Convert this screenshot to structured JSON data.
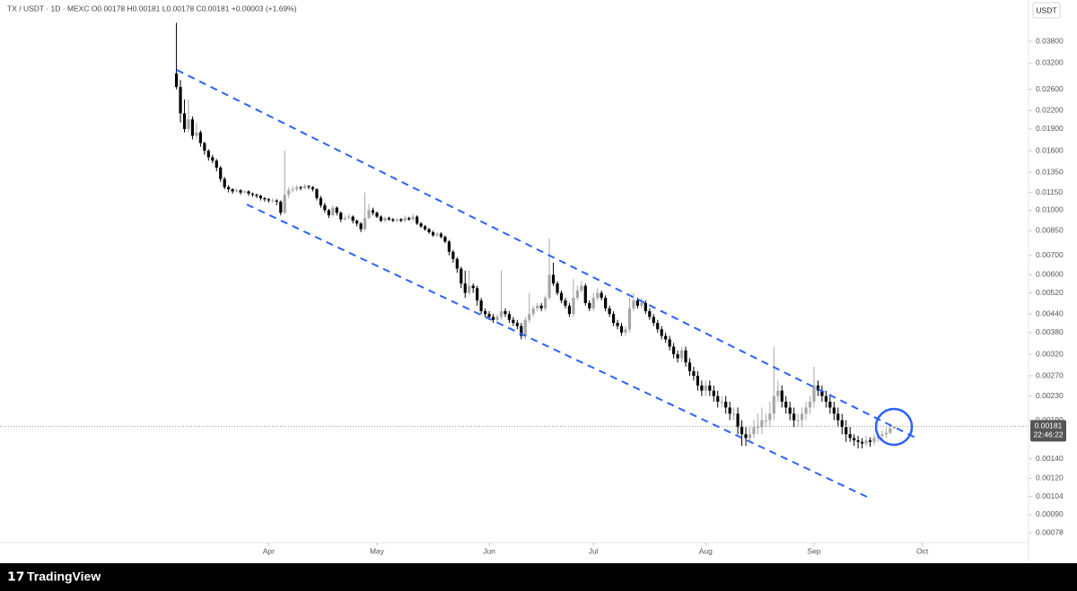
{
  "chart_data": {
    "type": "candlestick",
    "title": "TX / USDT · 1D · MEXC  O0.00178  H0.00181  L0.00178  C0.00181  +0.00003 (+1.69%)",
    "currency": "USDT",
    "last_price_label": "0.00181",
    "countdown": "22:46:22",
    "up_color": "#a6a6a6",
    "down_color": "#000000",
    "log_scale": true,
    "ylim": [
      0.00064,
      0.0527
    ],
    "yticks": [
      {
        "value": 0.038,
        "label": "0.03800"
      },
      {
        "value": 0.032,
        "label": "0.03200"
      },
      {
        "value": 0.026,
        "label": "0.02600"
      },
      {
        "value": 0.022,
        "label": "0.02200"
      },
      {
        "value": 0.019,
        "label": "0.01900"
      },
      {
        "value": 0.016,
        "label": "0.01600"
      },
      {
        "value": 0.0135,
        "label": "0.01350"
      },
      {
        "value": 0.0115,
        "label": "0.01150"
      },
      {
        "value": 0.01,
        "label": "0.01000"
      },
      {
        "value": 0.0085,
        "label": "0.00850"
      },
      {
        "value": 0.007,
        "label": "0.00700"
      },
      {
        "value": 0.006,
        "label": "0.00600"
      },
      {
        "value": 0.0052,
        "label": "0.00520"
      },
      {
        "value": 0.0044,
        "label": "0.00440"
      },
      {
        "value": 0.0038,
        "label": "0.00380"
      },
      {
        "value": 0.0032,
        "label": "0.00320"
      },
      {
        "value": 0.0027,
        "label": "0.00270"
      },
      {
        "value": 0.0023,
        "label": "0.00230"
      },
      {
        "value": 0.0019,
        "label": "0.00190"
      },
      {
        "value": 0.0014,
        "label": "0.00140"
      },
      {
        "value": 0.0012,
        "label": "0.00120"
      },
      {
        "value": 0.00104,
        "label": "0.00104"
      },
      {
        "value": 0.0009,
        "label": "0.00090"
      },
      {
        "value": 0.00078,
        "label": "0.00078"
      }
    ],
    "xlim": [
      -44,
      212.5
    ],
    "xticks": [
      {
        "value": 23,
        "label": "Apr"
      },
      {
        "value": 50,
        "label": "May"
      },
      {
        "value": 78,
        "label": "Jun"
      },
      {
        "value": 104,
        "label": "Jul"
      },
      {
        "value": 132,
        "label": "Aug"
      },
      {
        "value": 159,
        "label": "Sep"
      },
      {
        "value": 186,
        "label": "Oct"
      }
    ],
    "candles": [
      [
        0.0295,
        0.044,
        0.026,
        0.0265
      ],
      [
        0.0265,
        0.028,
        0.02,
        0.0215
      ],
      [
        0.0215,
        0.024,
        0.0185,
        0.019
      ],
      [
        0.019,
        0.024,
        0.0185,
        0.0205
      ],
      [
        0.0205,
        0.021,
        0.0175,
        0.018
      ],
      [
        0.018,
        0.02,
        0.0175,
        0.0185
      ],
      [
        0.0185,
        0.0188,
        0.0165,
        0.017
      ],
      [
        0.017,
        0.0172,
        0.0155,
        0.016
      ],
      [
        0.016,
        0.0162,
        0.0148,
        0.0152
      ],
      [
        0.0152,
        0.0155,
        0.0145,
        0.0148
      ],
      [
        0.0148,
        0.015,
        0.0136,
        0.014
      ],
      [
        0.014,
        0.0142,
        0.0125,
        0.0128
      ],
      [
        0.0128,
        0.013,
        0.0118,
        0.012
      ],
      [
        0.012,
        0.0122,
        0.0115,
        0.0118
      ],
      [
        0.0118,
        0.0119,
        0.0114,
        0.0116
      ],
      [
        0.0116,
        0.0119,
        0.0115,
        0.0117
      ],
      [
        0.0117,
        0.0118,
        0.0113,
        0.0115
      ],
      [
        0.0115,
        0.0117,
        0.0114,
        0.0116
      ],
      [
        0.0116,
        0.0117,
        0.0112,
        0.0114
      ],
      [
        0.0114,
        0.0115,
        0.0111,
        0.0113
      ],
      [
        0.0113,
        0.0114,
        0.011,
        0.0112
      ],
      [
        0.0112,
        0.0113,
        0.0108,
        0.011
      ],
      [
        0.011,
        0.0111,
        0.0107,
        0.0109
      ],
      [
        0.0109,
        0.011,
        0.0106,
        0.0108
      ],
      [
        0.0108,
        0.011,
        0.0106,
        0.0108
      ],
      [
        0.0108,
        0.0109,
        0.0104,
        0.0107
      ],
      [
        0.0107,
        0.0108,
        0.0096,
        0.0098
      ],
      [
        0.0098,
        0.016,
        0.0097,
        0.0113
      ],
      [
        0.0113,
        0.012,
        0.011,
        0.0117
      ],
      [
        0.0117,
        0.0121,
        0.0115,
        0.0118
      ],
      [
        0.0118,
        0.0122,
        0.0116,
        0.012
      ],
      [
        0.012,
        0.0121,
        0.0117,
        0.0119
      ],
      [
        0.0119,
        0.0123,
        0.0118,
        0.0121
      ],
      [
        0.0121,
        0.0122,
        0.0118,
        0.012
      ],
      [
        0.012,
        0.0121,
        0.0116,
        0.0118
      ],
      [
        0.0118,
        0.0119,
        0.0108,
        0.011
      ],
      [
        0.011,
        0.0112,
        0.0102,
        0.0104
      ],
      [
        0.0104,
        0.0106,
        0.0098,
        0.01
      ],
      [
        0.01,
        0.0101,
        0.0094,
        0.0096
      ],
      [
        0.0096,
        0.0104,
        0.0095,
        0.0102
      ],
      [
        0.0102,
        0.0103,
        0.0096,
        0.0098
      ],
      [
        0.0098,
        0.0099,
        0.0091,
        0.0093
      ],
      [
        0.0093,
        0.0096,
        0.0092,
        0.0094
      ],
      [
        0.0094,
        0.0097,
        0.0093,
        0.0095
      ],
      [
        0.0095,
        0.0096,
        0.009,
        0.0092
      ],
      [
        0.0092,
        0.0093,
        0.0088,
        0.009
      ],
      [
        0.009,
        0.0091,
        0.0084,
        0.0086
      ],
      [
        0.0086,
        0.0115,
        0.0085,
        0.0094
      ],
      [
        0.0094,
        0.0105,
        0.0093,
        0.01
      ],
      [
        0.01,
        0.0102,
        0.0096,
        0.0098
      ],
      [
        0.0098,
        0.0099,
        0.0094,
        0.0095
      ],
      [
        0.0095,
        0.0096,
        0.0091,
        0.0092
      ],
      [
        0.0092,
        0.0095,
        0.0091,
        0.0094
      ],
      [
        0.0094,
        0.0095,
        0.0092,
        0.0093
      ],
      [
        0.0093,
        0.0094,
        0.0091,
        0.0092
      ],
      [
        0.0092,
        0.0094,
        0.0091,
        0.0093
      ],
      [
        0.0093,
        0.0094,
        0.0091,
        0.0092
      ],
      [
        0.0092,
        0.0096,
        0.0091,
        0.0094
      ],
      [
        0.0094,
        0.0095,
        0.0092,
        0.0093
      ],
      [
        0.0093,
        0.0097,
        0.0092,
        0.0095
      ],
      [
        0.0095,
        0.0096,
        0.0089,
        0.009
      ],
      [
        0.009,
        0.0091,
        0.0087,
        0.0088
      ],
      [
        0.0088,
        0.0089,
        0.0085,
        0.0086
      ],
      [
        0.0086,
        0.0087,
        0.0083,
        0.0084
      ],
      [
        0.0084,
        0.0085,
        0.0081,
        0.0082
      ],
      [
        0.0082,
        0.0084,
        0.0081,
        0.0083
      ],
      [
        0.0083,
        0.0084,
        0.008,
        0.0081
      ],
      [
        0.0081,
        0.0082,
        0.0077,
        0.0078
      ],
      [
        0.0078,
        0.0079,
        0.007,
        0.0072
      ],
      [
        0.0072,
        0.0073,
        0.0066,
        0.0068
      ],
      [
        0.0068,
        0.0069,
        0.0061,
        0.0063
      ],
      [
        0.0063,
        0.0064,
        0.0054,
        0.0056
      ],
      [
        0.0056,
        0.0062,
        0.005,
        0.0052
      ],
      [
        0.0052,
        0.0062,
        0.0051,
        0.0055
      ],
      [
        0.0055,
        0.0056,
        0.0052,
        0.0054
      ],
      [
        0.0054,
        0.0055,
        0.0047,
        0.0049
      ],
      [
        0.0049,
        0.005,
        0.0044,
        0.0045
      ],
      [
        0.0045,
        0.0046,
        0.0043,
        0.0044
      ],
      [
        0.0044,
        0.0045,
        0.0042,
        0.0043
      ],
      [
        0.0043,
        0.0044,
        0.0041,
        0.0042
      ],
      [
        0.0042,
        0.0044,
        0.0041,
        0.0043
      ],
      [
        0.0043,
        0.0062,
        0.0042,
        0.0045
      ],
      [
        0.0045,
        0.0046,
        0.0043,
        0.0044
      ],
      [
        0.0044,
        0.0045,
        0.0041,
        0.0042
      ],
      [
        0.0042,
        0.0043,
        0.004,
        0.0041
      ],
      [
        0.0041,
        0.0042,
        0.0039,
        0.004
      ],
      [
        0.004,
        0.0041,
        0.0036,
        0.0037
      ],
      [
        0.0037,
        0.0043,
        0.0036,
        0.0042
      ],
      [
        0.0042,
        0.0052,
        0.0041,
        0.0044
      ],
      [
        0.0044,
        0.0047,
        0.0043,
        0.0046
      ],
      [
        0.0046,
        0.0048,
        0.0045,
        0.0047
      ],
      [
        0.0047,
        0.0048,
        0.0045,
        0.0046
      ],
      [
        0.0046,
        0.0051,
        0.0045,
        0.005
      ],
      [
        0.005,
        0.008,
        0.0049,
        0.006
      ],
      [
        0.006,
        0.0066,
        0.0055,
        0.0056
      ],
      [
        0.0056,
        0.0057,
        0.0051,
        0.0052
      ],
      [
        0.0052,
        0.0053,
        0.0048,
        0.0049
      ],
      [
        0.0049,
        0.005,
        0.0046,
        0.0047
      ],
      [
        0.0047,
        0.0048,
        0.0043,
        0.0044
      ],
      [
        0.0044,
        0.0058,
        0.0043,
        0.005
      ],
      [
        0.005,
        0.0055,
        0.0049,
        0.0053
      ],
      [
        0.0053,
        0.0057,
        0.0052,
        0.0055
      ],
      [
        0.0055,
        0.0056,
        0.0047,
        0.0048
      ],
      [
        0.0048,
        0.0049,
        0.0045,
        0.0046
      ],
      [
        0.0046,
        0.0052,
        0.0045,
        0.005
      ],
      [
        0.005,
        0.0054,
        0.0049,
        0.0052
      ],
      [
        0.0052,
        0.0053,
        0.0049,
        0.005
      ],
      [
        0.005,
        0.0051,
        0.0045,
        0.0046
      ],
      [
        0.0046,
        0.0047,
        0.0043,
        0.0044
      ],
      [
        0.0044,
        0.0045,
        0.004,
        0.0041
      ],
      [
        0.0041,
        0.0042,
        0.0039,
        0.004
      ],
      [
        0.004,
        0.0041,
        0.0037,
        0.0038
      ],
      [
        0.0038,
        0.004,
        0.0037,
        0.0039
      ],
      [
        0.0039,
        0.005,
        0.0038,
        0.0046
      ],
      [
        0.0046,
        0.0052,
        0.0045,
        0.0049
      ],
      [
        0.0049,
        0.005,
        0.0046,
        0.0047
      ],
      [
        0.0047,
        0.005,
        0.0046,
        0.0048
      ],
      [
        0.0048,
        0.0049,
        0.0044,
        0.0045
      ],
      [
        0.0045,
        0.0046,
        0.0042,
        0.0043
      ],
      [
        0.0043,
        0.0044,
        0.004,
        0.0041
      ],
      [
        0.0041,
        0.0042,
        0.0038,
        0.0039
      ],
      [
        0.0039,
        0.004,
        0.0036,
        0.0037
      ],
      [
        0.0037,
        0.0038,
        0.0035,
        0.0036
      ],
      [
        0.0036,
        0.0037,
        0.0033,
        0.0034
      ],
      [
        0.0034,
        0.0035,
        0.0031,
        0.0032
      ],
      [
        0.0032,
        0.0033,
        0.003,
        0.0031
      ],
      [
        0.0031,
        0.0034,
        0.003,
        0.0033
      ],
      [
        0.0033,
        0.0034,
        0.0029,
        0.003
      ],
      [
        0.003,
        0.0031,
        0.0027,
        0.0028
      ],
      [
        0.0028,
        0.0029,
        0.0026,
        0.0027
      ],
      [
        0.0027,
        0.0028,
        0.0024,
        0.0025
      ],
      [
        0.0025,
        0.0026,
        0.0023,
        0.0024
      ],
      [
        0.0024,
        0.0026,
        0.0023,
        0.0025
      ],
      [
        0.0025,
        0.0026,
        0.0023,
        0.0024
      ],
      [
        0.0024,
        0.0025,
        0.0022,
        0.0023
      ],
      [
        0.0023,
        0.0024,
        0.0021,
        0.0022
      ],
      [
        0.0022,
        0.0023,
        0.0021,
        0.0022
      ],
      [
        0.0022,
        0.0023,
        0.002,
        0.0021
      ],
      [
        0.0021,
        0.0022,
        0.0019,
        0.002
      ],
      [
        0.002,
        0.0021,
        0.0019,
        0.002
      ],
      [
        0.002,
        0.0021,
        0.0017,
        0.0018
      ],
      [
        0.0018,
        0.0019,
        0.00155,
        0.0017
      ],
      [
        0.0017,
        0.0018,
        0.00155,
        0.00165
      ],
      [
        0.00165,
        0.0018,
        0.0016,
        0.0017
      ],
      [
        0.0017,
        0.0019,
        0.00165,
        0.0018
      ],
      [
        0.0018,
        0.002,
        0.0017,
        0.0018
      ],
      [
        0.0018,
        0.0021,
        0.0017,
        0.0019
      ],
      [
        0.0019,
        0.002,
        0.0018,
        0.0019
      ],
      [
        0.0019,
        0.0022,
        0.0018,
        0.002
      ],
      [
        0.002,
        0.0034,
        0.0019,
        0.0023
      ],
      [
        0.0023,
        0.0026,
        0.0022,
        0.0024
      ],
      [
        0.0024,
        0.0025,
        0.0021,
        0.0022
      ],
      [
        0.0022,
        0.0023,
        0.002,
        0.0021
      ],
      [
        0.0021,
        0.0022,
        0.0019,
        0.002
      ],
      [
        0.002,
        0.0021,
        0.0018,
        0.0019
      ],
      [
        0.0019,
        0.002,
        0.0018,
        0.0019
      ],
      [
        0.0019,
        0.0021,
        0.0018,
        0.002
      ],
      [
        0.002,
        0.0022,
        0.0019,
        0.0021
      ],
      [
        0.0021,
        0.0023,
        0.002,
        0.0022
      ],
      [
        0.0022,
        0.0029,
        0.0021,
        0.0025
      ],
      [
        0.0025,
        0.0026,
        0.0023,
        0.0024
      ],
      [
        0.0024,
        0.0025,
        0.0022,
        0.0023
      ],
      [
        0.0023,
        0.0024,
        0.0021,
        0.0022
      ],
      [
        0.0022,
        0.0023,
        0.002,
        0.0021
      ],
      [
        0.0021,
        0.0022,
        0.0019,
        0.002
      ],
      [
        0.002,
        0.0021,
        0.0018,
        0.0019
      ],
      [
        0.0019,
        0.002,
        0.0017,
        0.0018
      ],
      [
        0.0018,
        0.0019,
        0.0016,
        0.0017
      ],
      [
        0.0017,
        0.0018,
        0.0016,
        0.00165
      ],
      [
        0.00165,
        0.0017,
        0.00155,
        0.00162
      ],
      [
        0.00162,
        0.00168,
        0.00152,
        0.0016
      ],
      [
        0.0016,
        0.00165,
        0.00152,
        0.00158
      ],
      [
        0.00158,
        0.00168,
        0.00155,
        0.00162
      ],
      [
        0.00162,
        0.00166,
        0.00154,
        0.0016
      ],
      [
        0.0016,
        0.0017,
        0.00156,
        0.00165
      ],
      [
        0.00165,
        0.00172,
        0.0016,
        0.00168
      ],
      [
        0.00168,
        0.00175,
        0.00162,
        0.0017
      ],
      [
        0.0017,
        0.0018,
        0.00165,
        0.00172
      ],
      [
        0.00172,
        0.00185,
        0.0017,
        0.00178
      ],
      [
        0.00178,
        0.00181,
        0.00178,
        0.00181
      ]
    ]
  },
  "branding": "TradingView"
}
